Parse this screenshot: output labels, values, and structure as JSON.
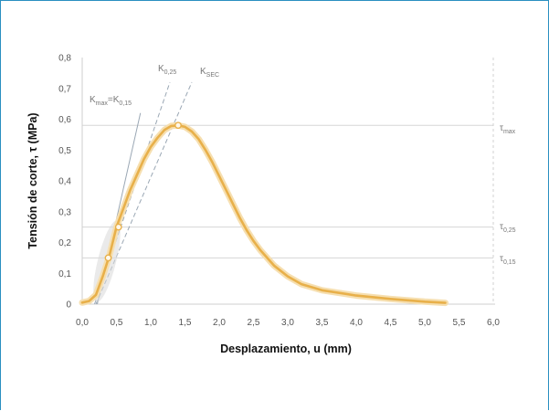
{
  "chart_data": {
    "type": "line",
    "xlabel": "Desplazamiento, u (mm)",
    "ylabel": "Tensión de corte, τ (MPa)",
    "xlim": [
      0,
      6.0
    ],
    "ylim": [
      0,
      0.8
    ],
    "xticks": [
      "0,0",
      "0,5",
      "1,0",
      "1,5",
      "2,0",
      "2,5",
      "3,0",
      "3,5",
      "4,0",
      "4,5",
      "5,0",
      "5,5",
      "6,0"
    ],
    "yticks": [
      "0",
      "0,1",
      "0,2",
      "0,3",
      "0,4",
      "0,5",
      "0,6",
      "0,7",
      "0,8"
    ],
    "grid": false,
    "series": [
      {
        "x": [
          0,
          0.1,
          0.2,
          0.3,
          0.4,
          0.5,
          0.6,
          0.7,
          0.8,
          0.9,
          1.0,
          1.1,
          1.2,
          1.3,
          1.4,
          1.5,
          1.6,
          1.7,
          1.8,
          1.9,
          2.0,
          2.1,
          2.2,
          2.3,
          2.4,
          2.5,
          2.6,
          2.8,
          3.0,
          3.2,
          3.5,
          4.0,
          4.5,
          5.0,
          5.3
        ],
        "y": [
          0.005,
          0.01,
          0.03,
          0.09,
          0.16,
          0.25,
          0.31,
          0.37,
          0.42,
          0.47,
          0.51,
          0.54,
          0.565,
          0.578,
          0.58,
          0.575,
          0.56,
          0.535,
          0.5,
          0.46,
          0.415,
          0.37,
          0.325,
          0.28,
          0.24,
          0.205,
          0.175,
          0.125,
          0.09,
          0.065,
          0.045,
          0.028,
          0.017,
          0.008,
          0.004
        ]
      }
    ],
    "reference_lines": [
      {
        "label": "Kmax=K0,15",
        "x1": 0.22,
        "y1": 0.0,
        "x2": 0.85,
        "y2": 0.62
      },
      {
        "label": "K0,25",
        "x1": 0.18,
        "y1": 0.0,
        "x2": 1.28,
        "y2": 0.72
      },
      {
        "label": "KSEC",
        "x1": 0.2,
        "y1": 0.0,
        "x2": 1.6,
        "y2": 0.72
      }
    ],
    "horizontal_levels": [
      {
        "value": 0.58,
        "label": "τmax"
      },
      {
        "value": 0.25,
        "label": "τ0,25"
      },
      {
        "value": 0.15,
        "label": "τ0,15"
      }
    ],
    "markers": [
      {
        "x": 0.38,
        "y": 0.15
      },
      {
        "x": 0.53,
        "y": 0.25
      },
      {
        "x": 1.4,
        "y": 0.58
      }
    ]
  },
  "annotations": {
    "kmax": {
      "main": "K",
      "sub1": "max",
      "mid": "=K",
      "sub2": "0,15"
    },
    "k025": {
      "main": "K",
      "sub": "0,25"
    },
    "ksec": {
      "main": "K",
      "sub": "SEC"
    },
    "tau_max": {
      "main": "τ",
      "sub": "max"
    },
    "tau_025": {
      "main": "τ",
      "sub": "0,25"
    },
    "tau_015": {
      "main": "τ",
      "sub": "0,15"
    }
  },
  "colors": {
    "curve": "#e8b04a",
    "curve_halo": "#f6dfb0",
    "ref_line": "#9aa7b4",
    "level_line": "#d6d6d6",
    "frame": "#2a8fc0"
  }
}
